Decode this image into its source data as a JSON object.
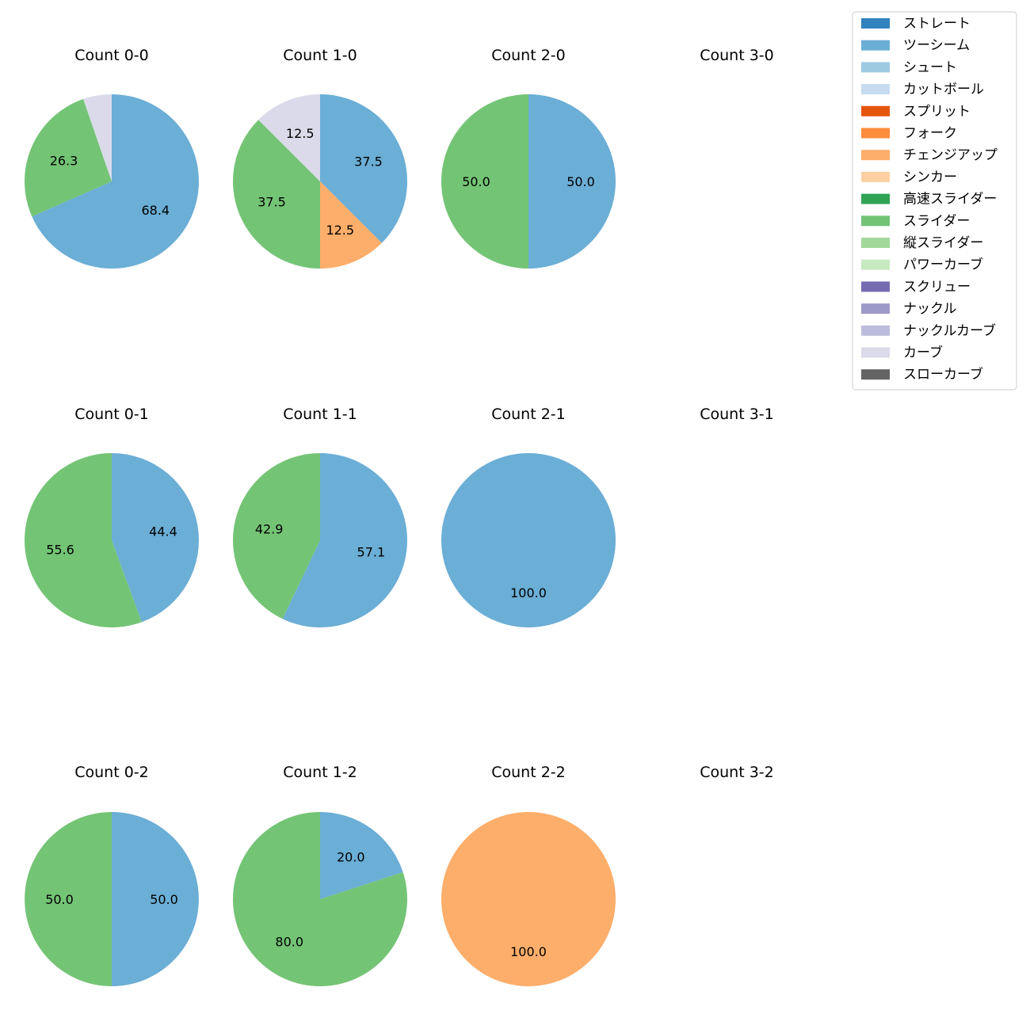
{
  "chart_data": {
    "type": "pie",
    "legend": {
      "placement": "top-right",
      "entries": [
        {
          "name": "ストレート",
          "color": "#3182bd"
        },
        {
          "name": "ツーシーム",
          "color": "#6baed6"
        },
        {
          "name": "シュート",
          "color": "#9ecae1"
        },
        {
          "name": "カットボール",
          "color": "#c6dbef"
        },
        {
          "name": "スプリット",
          "color": "#e6550d"
        },
        {
          "name": "フォーク",
          "color": "#fd8d3c"
        },
        {
          "name": "チェンジアップ",
          "color": "#fdae6b"
        },
        {
          "name": "シンカー",
          "color": "#fdd0a2"
        },
        {
          "name": "高速スライダー",
          "color": "#31a354"
        },
        {
          "name": "スライダー",
          "color": "#74c476"
        },
        {
          "name": "縦スライダー",
          "color": "#a1d99b"
        },
        {
          "name": "パワーカーブ",
          "color": "#c7e9c0"
        },
        {
          "name": "スクリュー",
          "color": "#756bb1"
        },
        {
          "name": "ナックル",
          "color": "#9e9ac8"
        },
        {
          "name": "ナックルカーブ",
          "color": "#bcbddc"
        },
        {
          "name": "カーブ",
          "color": "#dadaeb"
        },
        {
          "name": "スローカーブ",
          "color": "#636363"
        }
      ]
    },
    "panels": [
      {
        "title": "Count 0-0",
        "slices": [
          {
            "pitch": "ツーシーム",
            "value": 68.4,
            "label": "68.4"
          },
          {
            "pitch": "スライダー",
            "value": 26.3,
            "label": "26.3"
          },
          {
            "pitch": "カーブ",
            "value": 5.3,
            "label": ""
          }
        ]
      },
      {
        "title": "Count 1-0",
        "slices": [
          {
            "pitch": "ツーシーム",
            "value": 37.5,
            "label": "37.5"
          },
          {
            "pitch": "チェンジアップ",
            "value": 12.5,
            "label": "12.5"
          },
          {
            "pitch": "スライダー",
            "value": 37.5,
            "label": "37.5"
          },
          {
            "pitch": "カーブ",
            "value": 12.5,
            "label": "12.5"
          }
        ]
      },
      {
        "title": "Count 2-0",
        "slices": [
          {
            "pitch": "ツーシーム",
            "value": 50.0,
            "label": "50.0"
          },
          {
            "pitch": "スライダー",
            "value": 50.0,
            "label": "50.0"
          }
        ]
      },
      {
        "title": "Count 3-0",
        "slices": []
      },
      {
        "title": "Count 0-1",
        "slices": [
          {
            "pitch": "ツーシーム",
            "value": 44.4,
            "label": "44.4"
          },
          {
            "pitch": "スライダー",
            "value": 55.6,
            "label": "55.6"
          }
        ]
      },
      {
        "title": "Count 1-1",
        "slices": [
          {
            "pitch": "ツーシーム",
            "value": 57.1,
            "label": "57.1"
          },
          {
            "pitch": "スライダー",
            "value": 42.9,
            "label": "42.9"
          }
        ]
      },
      {
        "title": "Count 2-1",
        "slices": [
          {
            "pitch": "ツーシーム",
            "value": 100.0,
            "label": "100.0"
          }
        ]
      },
      {
        "title": "Count 3-1",
        "slices": []
      },
      {
        "title": "Count 0-2",
        "slices": [
          {
            "pitch": "ツーシーム",
            "value": 50.0,
            "label": "50.0"
          },
          {
            "pitch": "スライダー",
            "value": 50.0,
            "label": "50.0"
          }
        ]
      },
      {
        "title": "Count 1-2",
        "slices": [
          {
            "pitch": "ツーシーム",
            "value": 20.0,
            "label": "20.0"
          },
          {
            "pitch": "スライダー",
            "value": 80.0,
            "label": "80.0"
          }
        ]
      },
      {
        "title": "Count 2-2",
        "slices": [
          {
            "pitch": "チェンジアップ",
            "value": 100.0,
            "label": "100.0"
          }
        ]
      },
      {
        "title": "Count 3-2",
        "slices": []
      }
    ]
  }
}
